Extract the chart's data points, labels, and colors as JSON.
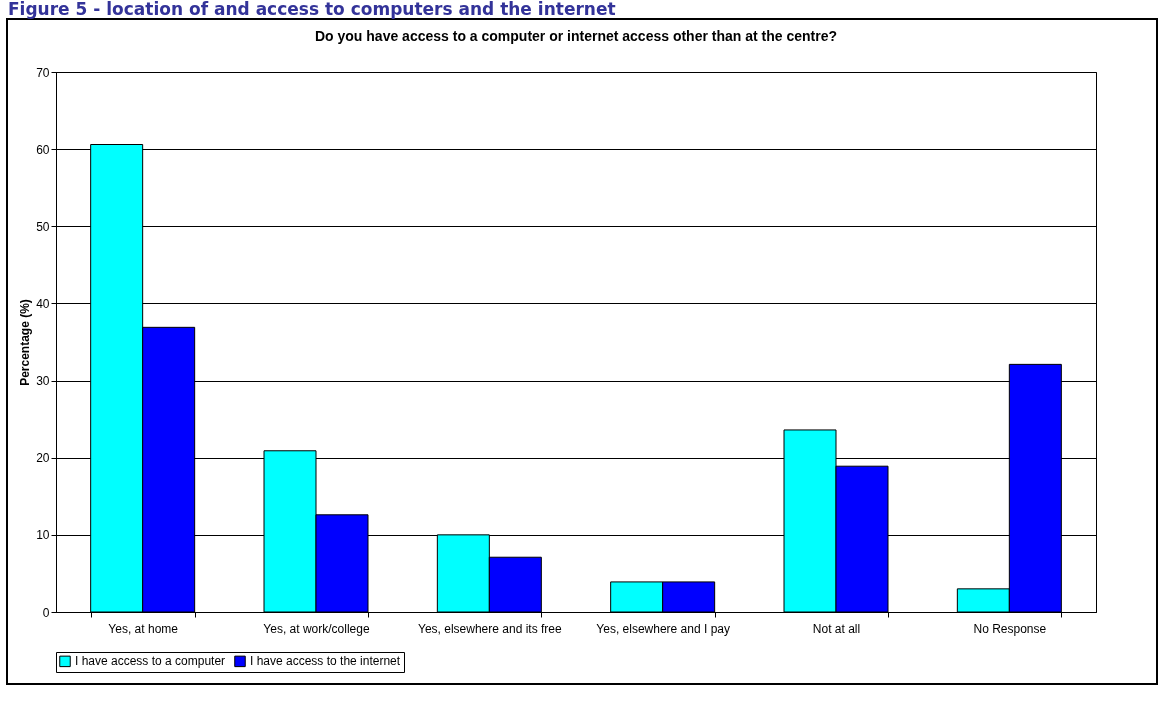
{
  "chart_data": {
    "type": "bar",
    "title": "Do you have access to a computer or internet access other than at the centre?",
    "ylabel": "Percentage (%)",
    "annotations": [
      "Figure 5 - location of and access to computers and the internet"
    ],
    "categories": [
      "Yes, at home",
      "Yes, at work/college",
      "Yes, elsewhere and its free",
      "Yes, elsewhere and I pay",
      "Not at all",
      "No Response"
    ],
    "series": [
      {
        "name": "I have access to a computer",
        "color": "#00ffff",
        "values": [
          60.6,
          20.9,
          10.0,
          3.9,
          23.6,
          3.0
        ]
      },
      {
        "name": "I have access to the internet",
        "color": "#0000ff",
        "values": [
          36.9,
          12.6,
          7.1,
          3.9,
          18.9,
          32.1
        ]
      }
    ],
    "ylim": [
      0,
      70
    ],
    "yticks": [
      0,
      10,
      20,
      30,
      40,
      50,
      60,
      70
    ],
    "grid": "y",
    "legend": "bottom"
  }
}
